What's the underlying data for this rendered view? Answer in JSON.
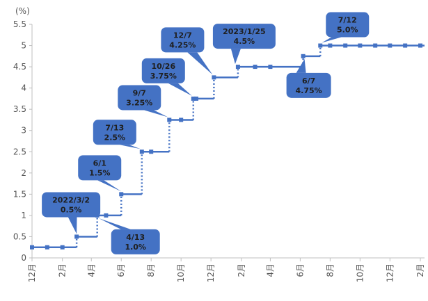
{
  "chart_data": {
    "type": "line",
    "y_unit_label": "(%)",
    "ylim": [
      0,
      5.5
    ],
    "y_ticks": [
      0,
      0.5,
      1,
      1.5,
      2,
      2.5,
      3,
      3.5,
      4,
      4.5,
      5,
      5.5
    ],
    "y_tick_labels": [
      "0",
      "0.5",
      "1",
      "1.5",
      "2",
      "2.5",
      "3",
      "3.5",
      "4",
      "4.5",
      "5",
      "5.5"
    ],
    "x_tick_labels": [
      "12月",
      "2月",
      "4月",
      "6月",
      "8月",
      "10月",
      "12月",
      "2月",
      "4月",
      "6月",
      "8月",
      "10月",
      "12月",
      "2月"
    ],
    "x_tick_months_from_start": [
      0,
      2,
      4,
      6,
      8,
      10,
      12,
      14,
      16,
      18,
      20,
      22,
      24,
      26
    ],
    "grid": false,
    "legend": "none",
    "line_color": "#4472c4",
    "series": [
      {
        "values": [
          {
            "date": "2021-12-01",
            "value": 0.25
          },
          {
            "date": "2022-01-01",
            "value": 0.25
          },
          {
            "date": "2022-02-01",
            "value": 0.25
          },
          {
            "date": "2022-03-02",
            "value": 0.5
          },
          {
            "date": "2022-04-13",
            "value": 1.0
          },
          {
            "date": "2022-05-01",
            "value": 1.0
          },
          {
            "date": "2022-06-01",
            "value": 1.5
          },
          {
            "date": "2022-07-13",
            "value": 2.5
          },
          {
            "date": "2022-08-01",
            "value": 2.5
          },
          {
            "date": "2022-09-07",
            "value": 3.25
          },
          {
            "date": "2022-10-01",
            "value": 3.25
          },
          {
            "date": "2022-10-26",
            "value": 3.75
          },
          {
            "date": "2022-11-01",
            "value": 3.75
          },
          {
            "date": "2022-12-07",
            "value": 4.25
          },
          {
            "date": "2023-01-25",
            "value": 4.5
          },
          {
            "date": "2023-03-01",
            "value": 4.5
          },
          {
            "date": "2023-04-01",
            "value": 4.5
          },
          {
            "date": "2023-06-07",
            "value": 4.75
          },
          {
            "date": "2023-07-12",
            "value": 5.0
          },
          {
            "date": "2023-08-01",
            "value": 5.0
          },
          {
            "date": "2023-09-01",
            "value": 5.0
          },
          {
            "date": "2023-10-01",
            "value": 5.0
          },
          {
            "date": "2023-11-01",
            "value": 5.0
          },
          {
            "date": "2023-12-01",
            "value": 5.0
          },
          {
            "date": "2024-01-01",
            "value": 5.0
          },
          {
            "date": "2024-02-01",
            "value": 5.0
          }
        ]
      }
    ],
    "annotations": [
      {
        "date_label": "2022/3/2",
        "rate_label": "0.5%",
        "date": "2022-03-02",
        "value": 0.5,
        "placement": "above"
      },
      {
        "date_label": "4/13",
        "rate_label": "1.0%",
        "date": "2022-04-13",
        "value": 1.0,
        "placement": "below"
      },
      {
        "date_label": "6/1",
        "rate_label": "1.5%",
        "date": "2022-06-01",
        "value": 1.5,
        "placement": "above"
      },
      {
        "date_label": "7/13",
        "rate_label": "2.5%",
        "date": "2022-07-13",
        "value": 2.5,
        "placement": "above"
      },
      {
        "date_label": "9/7",
        "rate_label": "3.25%",
        "date": "2022-09-07",
        "value": 3.25,
        "placement": "above"
      },
      {
        "date_label": "10/26",
        "rate_label": "3.75%",
        "date": "2022-10-26",
        "value": 3.75,
        "placement": "above"
      },
      {
        "date_label": "12/7",
        "rate_label": "4.25%",
        "date": "2022-12-07",
        "value": 4.25,
        "placement": "above"
      },
      {
        "date_label": "2023/1/25",
        "rate_label": "4.5%",
        "date": "2023-01-25",
        "value": 4.5,
        "placement": "above"
      },
      {
        "date_label": "6/7",
        "rate_label": "4.75%",
        "date": "2023-06-07",
        "value": 4.75,
        "placement": "below"
      },
      {
        "date_label": "7/12",
        "rate_label": "5.0%",
        "date": "2023-07-12",
        "value": 5.0,
        "placement": "above"
      }
    ]
  }
}
